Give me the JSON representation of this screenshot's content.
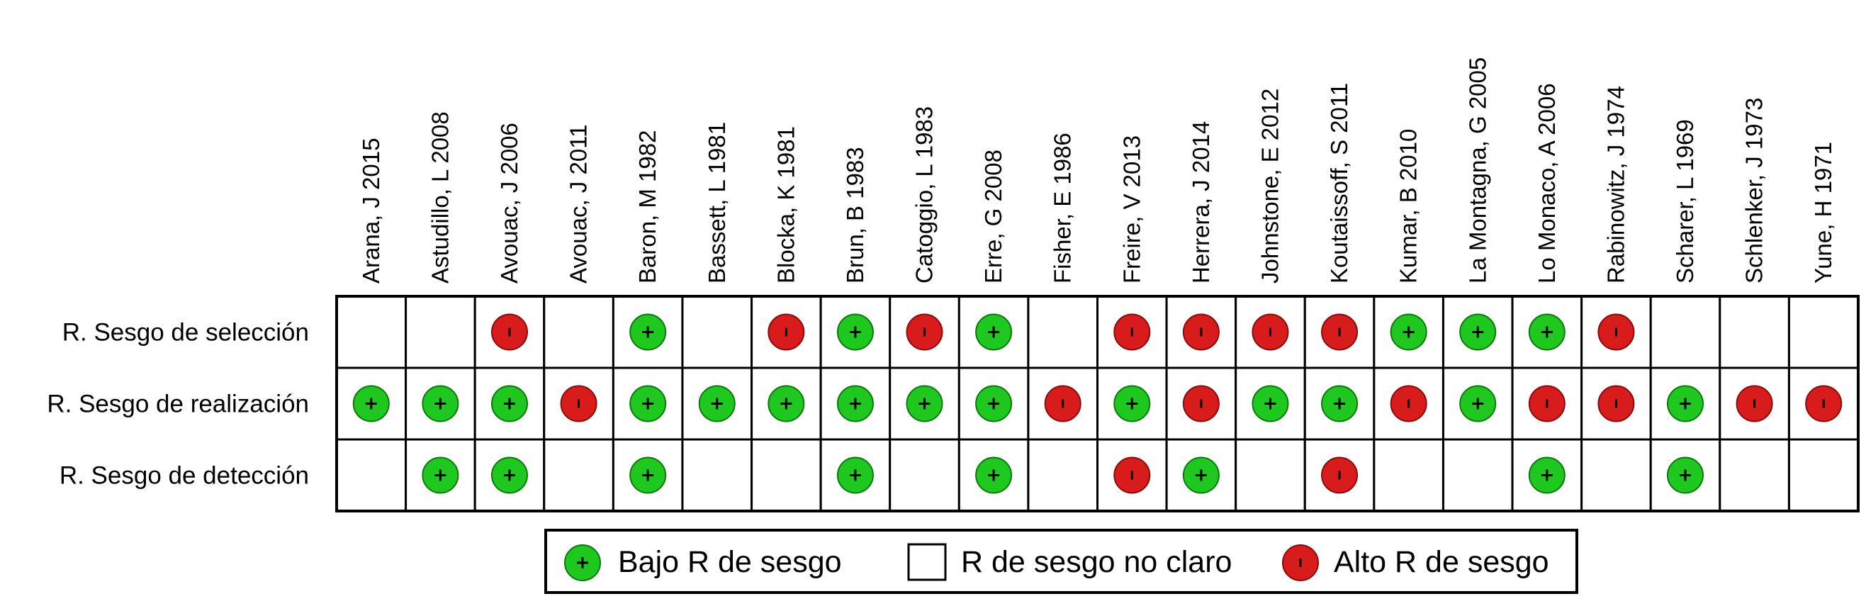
{
  "chart_data": {
    "type": "table",
    "studies": [
      "Arana, J 2015",
      "Astudillo, L 2008",
      "Avouac, J 2006",
      "Avouac, J 2011",
      "Baron, M 1982",
      "Bassett, L 1981",
      "Blocka, K 1981",
      "Brun, B 1983",
      "Catoggio, L 1983",
      "Erre, G 2008",
      "Fisher, E 1986",
      "Freire, V 2013",
      "Herrera, J 2014",
      "Johnstone, E 2012",
      "Koutaissoff, S 2011",
      "Kumar, B 2010",
      "La Montagna, G 2005",
      "Lo Monaco, A 2006",
      "Rabinowitz, J 1974",
      "Scharer, L 1969",
      "Schlenker, J 1973",
      "Yune, H 1971"
    ],
    "domains": [
      "R. Sesgo de selección",
      "R. Sesgo de realización",
      "R. Sesgo de detección"
    ],
    "judgements": [
      [
        "unclear",
        "unclear",
        "high",
        "unclear",
        "low",
        "unclear",
        "high",
        "low",
        "high",
        "low",
        "unclear",
        "high",
        "high",
        "high",
        "high",
        "low",
        "low",
        "low",
        "high",
        "unclear",
        "unclear",
        "unclear"
      ],
      [
        "low",
        "low",
        "low",
        "high",
        "low",
        "low",
        "low",
        "low",
        "low",
        "low",
        "high",
        "low",
        "high",
        "low",
        "low",
        "high",
        "low",
        "high",
        "high",
        "low",
        "high",
        "high"
      ],
      [
        "unclear",
        "low",
        "low",
        "unclear",
        "low",
        "unclear",
        "unclear",
        "low",
        "unclear",
        "low",
        "unclear",
        "high",
        "low",
        "unclear",
        "high",
        "unclear",
        "unclear",
        "low",
        "unclear",
        "low",
        "unclear",
        "unclear"
      ]
    ],
    "legend": [
      {
        "key": "low",
        "label": "Bajo R de sesgo",
        "symbol": "green-plus-circle",
        "color": "#1fc81f"
      },
      {
        "key": "unclear",
        "label": "R de sesgo no claro",
        "symbol": "empty-square",
        "color": "#ffffff"
      },
      {
        "key": "high",
        "label": "Alto R de sesgo",
        "symbol": "red-minus-circle",
        "color": "#d81c1c"
      }
    ],
    "colors": {
      "low": "#1fc81f",
      "high": "#d81c1c"
    }
  }
}
